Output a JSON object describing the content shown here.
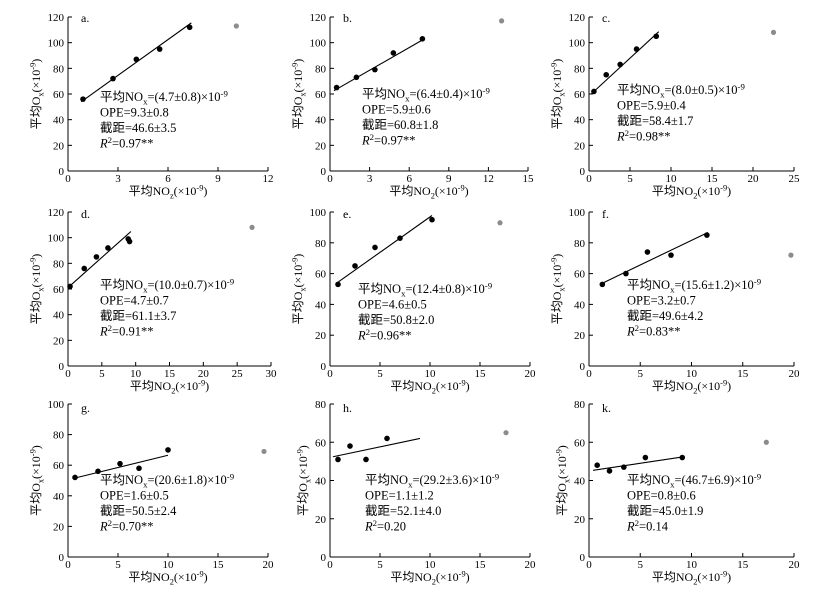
{
  "colors": {
    "point": "#000000",
    "outlier": "#8c8c8c",
    "line": "#000000"
  },
  "chart_data": [
    {
      "type": "scatter",
      "panel": "a.",
      "xlim": [
        0,
        12
      ],
      "ylim": [
        0,
        120
      ],
      "xticks": [
        0,
        3,
        6,
        9,
        12
      ],
      "yticks": [
        0,
        20,
        40,
        60,
        80,
        100,
        120
      ],
      "xlabel": [
        {
          "text": "平均NO"
        },
        {
          "sub": "z"
        },
        {
          "text": "(×10"
        },
        {
          "sup": "-9"
        },
        {
          "text": ")"
        }
      ],
      "ylabel": [
        {
          "text": "平均O"
        },
        {
          "sub": "x"
        },
        {
          "text": "(×10"
        },
        {
          "sup": "-9"
        },
        {
          "text": ")"
        }
      ],
      "points": [
        [
          0.9,
          56
        ],
        [
          2.7,
          72
        ],
        [
          4.1,
          87
        ],
        [
          5.5,
          95
        ],
        [
          7.3,
          112
        ]
      ],
      "outliers": [
        [
          10.1,
          113
        ]
      ],
      "fit": {
        "slope": 9.3,
        "intercept": 46.6,
        "x_range": [
          0.8,
          7.4
        ]
      },
      "annotation": [
        [
          {
            "text": "平均NO"
          },
          {
            "sub": "x"
          },
          {
            "text": "=(4.7±0.8)×10"
          },
          {
            "sup": "-9"
          }
        ],
        [
          {
            "text": "OPE=9.3±0.8"
          }
        ],
        [
          {
            "text": "截距=46.6±3.5"
          }
        ],
        [
          {
            "italic": "R"
          },
          {
            "sup": "2"
          },
          {
            "text": "=0.97**"
          }
        ]
      ]
    },
    {
      "type": "scatter",
      "panel": "b.",
      "xlim": [
        0,
        15
      ],
      "ylim": [
        0,
        120
      ],
      "xticks": [
        0,
        3,
        6,
        9,
        12,
        15
      ],
      "yticks": [
        0,
        20,
        40,
        60,
        80,
        100,
        120
      ],
      "xlabel": [
        {
          "text": "平均NO"
        },
        {
          "sub": "2"
        },
        {
          "text": "(×10"
        },
        {
          "sup": "-9"
        },
        {
          "text": ")"
        }
      ],
      "ylabel": [
        {
          "text": "平均O"
        },
        {
          "sub": "x"
        },
        {
          "text": "(×10"
        },
        {
          "sup": "-9"
        },
        {
          "text": ")"
        }
      ],
      "points": [
        [
          0.5,
          65
        ],
        [
          2.0,
          73
        ],
        [
          3.4,
          79
        ],
        [
          4.8,
          92
        ],
        [
          7.0,
          103
        ]
      ],
      "outliers": [
        [
          13.0,
          117
        ]
      ],
      "fit": {
        "slope": 5.9,
        "intercept": 60.8,
        "x_range": [
          0.3,
          7.1
        ]
      },
      "annotation": [
        [
          {
            "text": "平均NO"
          },
          {
            "sub": "x"
          },
          {
            "text": "=(6.4±0.4)×10"
          },
          {
            "sup": "-9"
          }
        ],
        [
          {
            "text": "OPE=5.9±0.6"
          }
        ],
        [
          {
            "text": "截距=60.8±1.8"
          }
        ],
        [
          {
            "italic": "R"
          },
          {
            "sup": "2"
          },
          {
            "text": "=0.97**"
          }
        ]
      ]
    },
    {
      "type": "scatter",
      "panel": "c.",
      "xlim": [
        0,
        25
      ],
      "ylim": [
        0,
        120
      ],
      "xticks": [
        0,
        5,
        10,
        15,
        20,
        25
      ],
      "yticks": [
        0,
        20,
        40,
        60,
        80,
        100,
        120
      ],
      "xlabel": [
        {
          "text": "平均NO"
        },
        {
          "sub": "2"
        },
        {
          "text": "(×10"
        },
        {
          "sup": "-9"
        },
        {
          "text": ")"
        }
      ],
      "ylabel": [
        {
          "text": "平均O"
        },
        {
          "sub": "x"
        },
        {
          "text": "(×10"
        },
        {
          "sup": "-9"
        },
        {
          "text": ")"
        }
      ],
      "points": [
        [
          0.6,
          62
        ],
        [
          2.1,
          75
        ],
        [
          3.8,
          83
        ],
        [
          5.8,
          95
        ],
        [
          8.2,
          105
        ]
      ],
      "outliers": [
        [
          22.5,
          108
        ]
      ],
      "fit": {
        "slope": 5.9,
        "intercept": 58.4,
        "x_range": [
          0.3,
          8.5
        ]
      },
      "annotation": [
        [
          {
            "text": "平均NO"
          },
          {
            "sub": "x"
          },
          {
            "text": "=(8.0±0.5)×10"
          },
          {
            "sup": "-9"
          }
        ],
        [
          {
            "text": "OPE=5.9±0.4"
          }
        ],
        [
          {
            "text": "截距=58.4±1.7"
          }
        ],
        [
          {
            "italic": "R"
          },
          {
            "sup": "2"
          },
          {
            "text": "=0.98**"
          }
        ]
      ]
    },
    {
      "type": "scatter",
      "panel": "d.",
      "xlim": [
        0,
        30
      ],
      "ylim": [
        0,
        120
      ],
      "xticks": [
        0,
        5,
        10,
        15,
        20,
        25,
        30
      ],
      "yticks": [
        0,
        20,
        40,
        60,
        80,
        100,
        120
      ],
      "xlabel": [
        {
          "text": "平均NO"
        },
        {
          "sub": "2"
        },
        {
          "text": "(×10"
        },
        {
          "sup": "-9"
        },
        {
          "text": ")"
        }
      ],
      "ylabel": [
        {
          "text": "平均O"
        },
        {
          "sub": "x"
        },
        {
          "text": "(×10"
        },
        {
          "sup": "-9"
        },
        {
          "text": ")"
        }
      ],
      "points": [
        [
          0.3,
          62
        ],
        [
          2.4,
          76
        ],
        [
          4.2,
          85
        ],
        [
          5.9,
          92
        ],
        [
          8.9,
          99
        ],
        [
          9.1,
          97
        ]
      ],
      "outliers": [
        [
          27.2,
          108
        ]
      ],
      "fit": {
        "slope": 4.7,
        "intercept": 61.1,
        "x_range": [
          0.3,
          9.3
        ]
      },
      "annotation": [
        [
          {
            "text": "平均NO"
          },
          {
            "sub": "x"
          },
          {
            "text": "=(10.0±0.7)×10"
          },
          {
            "sup": "-9"
          }
        ],
        [
          {
            "text": "OPE=4.7±0.7"
          }
        ],
        [
          {
            "text": "截距=61.1±3.7"
          }
        ],
        [
          {
            "italic": "R"
          },
          {
            "sup": "2"
          },
          {
            "text": "=0.91**"
          }
        ]
      ]
    },
    {
      "type": "scatter",
      "panel": "e.",
      "xlim": [
        0,
        20
      ],
      "ylim": [
        0,
        100
      ],
      "xticks": [
        0,
        5,
        10,
        15,
        20
      ],
      "yticks": [
        0,
        20,
        40,
        60,
        80,
        100
      ],
      "xlabel": [
        {
          "text": "平均NO"
        },
        {
          "sub": "2"
        },
        {
          "text": "(×10"
        },
        {
          "sup": "-9"
        },
        {
          "text": ")"
        }
      ],
      "ylabel": [
        {
          "text": "平均O"
        },
        {
          "sub": "x"
        },
        {
          "text": "(×10"
        },
        {
          "sup": "-9"
        },
        {
          "text": ")"
        }
      ],
      "points": [
        [
          0.8,
          53
        ],
        [
          2.5,
          65
        ],
        [
          4.5,
          77
        ],
        [
          7.0,
          83
        ],
        [
          10.2,
          95
        ]
      ],
      "outliers": [
        [
          17.0,
          93
        ]
      ],
      "fit": {
        "slope": 4.6,
        "intercept": 50.8,
        "x_range": [
          0.6,
          10.2
        ]
      },
      "annotation": [
        [
          {
            "text": "平均NO"
          },
          {
            "sub": "x"
          },
          {
            "text": "=(12.4±0.8)×10"
          },
          {
            "sup": "-9"
          }
        ],
        [
          {
            "text": "OPE=4.6±0.5"
          }
        ],
        [
          {
            "text": "截距=50.8±2.0"
          }
        ],
        [
          {
            "italic": "R"
          },
          {
            "sup": "2"
          },
          {
            "text": "=0.96**"
          }
        ]
      ]
    },
    {
      "type": "scatter",
      "panel": "f.",
      "xlim": [
        0,
        20
      ],
      "ylim": [
        0,
        100
      ],
      "xticks": [
        0,
        5,
        10,
        15,
        20
      ],
      "yticks": [
        0,
        20,
        40,
        60,
        80,
        100
      ],
      "xlabel": [
        {
          "text": "平均NO"
        },
        {
          "sub": "2"
        },
        {
          "text": "(×10"
        },
        {
          "sup": "-9"
        },
        {
          "text": ")"
        }
      ],
      "ylabel": [
        {
          "text": "平均O"
        },
        {
          "sub": "x"
        },
        {
          "text": "(×10"
        },
        {
          "sup": "-9"
        },
        {
          "text": ")"
        }
      ],
      "points": [
        [
          1.3,
          53
        ],
        [
          3.6,
          60
        ],
        [
          5.7,
          74
        ],
        [
          8.0,
          72
        ],
        [
          11.5,
          85
        ]
      ],
      "outliers": [
        [
          19.7,
          72
        ]
      ],
      "fit": {
        "slope": 3.2,
        "intercept": 49.6,
        "x_range": [
          1.1,
          11.6
        ]
      },
      "annotation": [
        [
          {
            "text": "平均NO"
          },
          {
            "sub": "x"
          },
          {
            "text": "=(15.6±1.2)×10"
          },
          {
            "sup": "-9"
          }
        ],
        [
          {
            "text": "OPE=3.2±0.7"
          }
        ],
        [
          {
            "text": "截距=49.6±4.2"
          }
        ],
        [
          {
            "italic": "R"
          },
          {
            "sup": "2"
          },
          {
            "text": "=0.83**"
          }
        ]
      ]
    },
    {
      "type": "scatter",
      "panel": "g.",
      "xlim": [
        0,
        20
      ],
      "ylim": [
        0,
        100
      ],
      "xticks": [
        0,
        5,
        10,
        15,
        20
      ],
      "yticks": [
        0,
        20,
        40,
        60,
        80,
        100
      ],
      "xlabel": [
        {
          "text": "平均NO"
        },
        {
          "sub": "2"
        },
        {
          "text": "(×10"
        },
        {
          "sup": "-9"
        },
        {
          "text": ")"
        }
      ],
      "ylabel": [
        {
          "text": "平均O"
        },
        {
          "sub": "x"
        },
        {
          "text": "(×10"
        },
        {
          "sup": "-9"
        },
        {
          "text": ")"
        }
      ],
      "points": [
        [
          0.7,
          52
        ],
        [
          3.0,
          56
        ],
        [
          5.2,
          61
        ],
        [
          7.1,
          58
        ],
        [
          10.0,
          70
        ]
      ],
      "outliers": [
        [
          19.6,
          69
        ]
      ],
      "fit": {
        "slope": 1.6,
        "intercept": 50.5,
        "x_range": [
          0.5,
          10.0
        ]
      },
      "annotation": [
        [
          {
            "text": "平均NO"
          },
          {
            "sub": "x"
          },
          {
            "text": "=(20.6±1.8)×10"
          },
          {
            "sup": "-9"
          }
        ],
        [
          {
            "text": "OPE=1.6±0.5"
          }
        ],
        [
          {
            "text": "截距=50.5±2.4"
          }
        ],
        [
          {
            "italic": "R"
          },
          {
            "sup": "2"
          },
          {
            "text": "=0.70**"
          }
        ]
      ]
    },
    {
      "type": "scatter",
      "panel": "h.",
      "xlim": [
        0,
        20
      ],
      "ylim": [
        0,
        80
      ],
      "xticks": [
        0,
        5,
        10,
        15,
        20
      ],
      "yticks": [
        0,
        20,
        40,
        60,
        80
      ],
      "xlabel": [
        {
          "text": "平均NO"
        },
        {
          "sub": "2"
        },
        {
          "text": "(×10"
        },
        {
          "sup": "-9"
        },
        {
          "text": ")"
        }
      ],
      "ylabel": [
        {
          "text": "平均O"
        },
        {
          "sub": "x"
        },
        {
          "text": "(×10"
        },
        {
          "sup": "-9"
        },
        {
          "text": ")"
        }
      ],
      "points": [
        [
          0.8,
          51
        ],
        [
          2.0,
          58
        ],
        [
          3.6,
          51
        ],
        [
          5.7,
          62
        ]
      ],
      "outliers": [
        [
          17.6,
          65
        ]
      ],
      "fit": {
        "slope": 1.1,
        "intercept": 52.1,
        "x_range": [
          0.3,
          9.0
        ]
      },
      "annotation": [
        [
          {
            "text": "平均NO"
          },
          {
            "sub": "x"
          },
          {
            "text": "=(29.2±3.6)×10"
          },
          {
            "sup": "-9"
          }
        ],
        [
          {
            "text": "OPE=1.1±1.2"
          }
        ],
        [
          {
            "text": "截距=52.1±4.0"
          }
        ],
        [
          {
            "italic": "R"
          },
          {
            "sup": "2"
          },
          {
            "text": "=0.20"
          }
        ]
      ]
    },
    {
      "type": "scatter",
      "panel": "k.",
      "xlim": [
        0,
        20
      ],
      "ylim": [
        0,
        80
      ],
      "xticks": [
        0,
        5,
        10,
        15,
        20
      ],
      "yticks": [
        0,
        20,
        40,
        60,
        80
      ],
      "xlabel": [
        {
          "text": "平均NO"
        },
        {
          "sub": "2"
        },
        {
          "text": "(×10"
        },
        {
          "sup": "-9"
        },
        {
          "text": ")"
        }
      ],
      "ylabel": [
        {
          "text": "平均O"
        },
        {
          "sub": "x"
        },
        {
          "text": "(×10"
        },
        {
          "sup": "-9"
        },
        {
          "text": ")"
        }
      ],
      "points": [
        [
          0.8,
          48
        ],
        [
          2.0,
          45
        ],
        [
          3.4,
          47
        ],
        [
          5.5,
          52
        ],
        [
          9.1,
          52
        ]
      ],
      "outliers": [
        [
          17.3,
          60
        ]
      ],
      "fit": {
        "slope": 0.8,
        "intercept": 45.0,
        "x_range": [
          0.4,
          9.3
        ]
      },
      "annotation": [
        [
          {
            "text": "平均NO"
          },
          {
            "sub": "x"
          },
          {
            "text": "=(46.7±6.9)×10"
          },
          {
            "sup": "-9"
          }
        ],
        [
          {
            "text": "OPE=0.8±0.6"
          }
        ],
        [
          {
            "text": "截距=45.0±1.9"
          }
        ],
        [
          {
            "italic": "R"
          },
          {
            "sup": "2"
          },
          {
            "text": "=0.14"
          }
        ]
      ]
    }
  ]
}
